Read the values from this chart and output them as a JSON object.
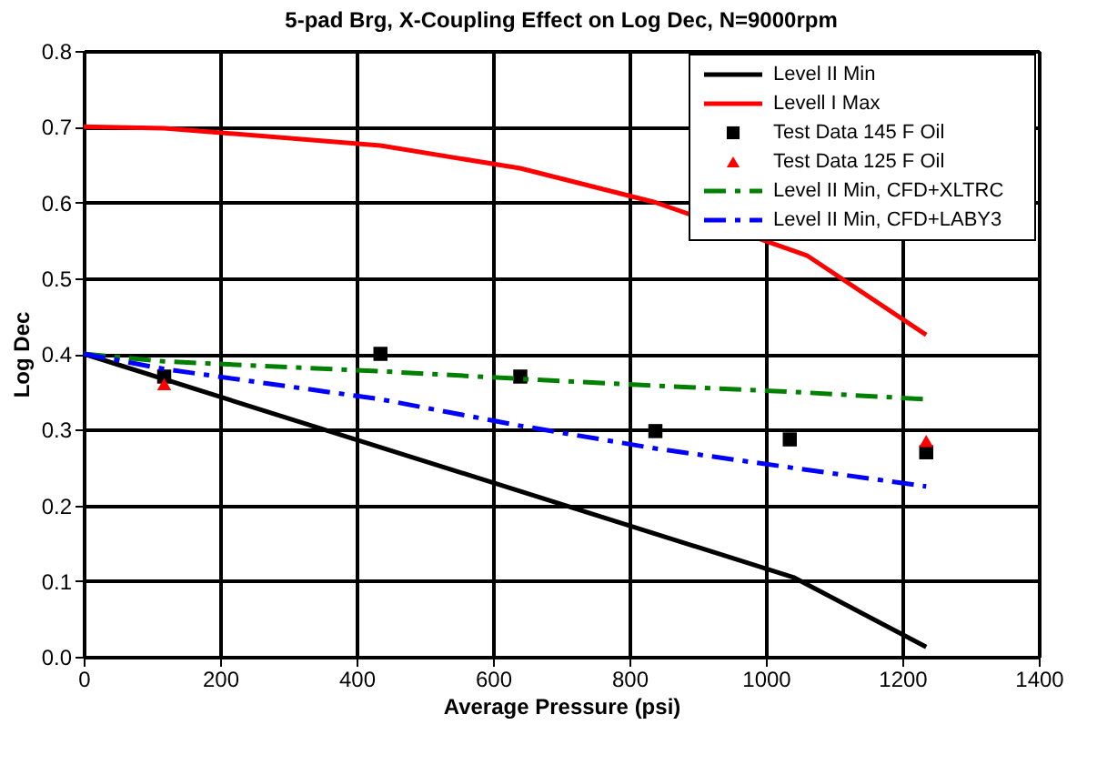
{
  "chart_data": {
    "type": "line",
    "title": "5-pad Brg, X-Coupling Effect on Log Dec, N=9000rpm",
    "xlabel": "Average Pressure (psi)",
    "ylabel": "Log Dec",
    "xlim": [
      0,
      1400
    ],
    "xticks": [
      0,
      200,
      400,
      600,
      800,
      1000,
      1200,
      1400
    ],
    "ylim": [
      0,
      0.8
    ],
    "yticks": [
      {
        "value": 0,
        "label": "0.0"
      },
      0.1,
      0.2,
      0.3,
      0.4,
      0.5,
      0.6,
      0.7,
      0.8
    ],
    "grid": true,
    "legend": "top right",
    "series": [
      {
        "name": "Level II Min",
        "color": "#000000",
        "marker": "none",
        "line_style": "solid",
        "x": [
          0,
          1040,
          1235
        ],
        "values": [
          0.4,
          0.105,
          0.013
        ]
      },
      {
        "name": "Levell I Max",
        "color": "#ff0000",
        "marker": "none",
        "line_style": "solid",
        "x": [
          0,
          118,
          435,
          640,
          838,
          1060,
          1235
        ],
        "values": [
          0.7,
          0.698,
          0.675,
          0.645,
          0.6,
          0.53,
          0.425
        ]
      },
      {
        "name": "Test Data 145 F Oil",
        "type": "scatter",
        "color": "#000000",
        "marker": "square",
        "x": [
          118,
          435,
          640,
          838,
          1035,
          1235
        ],
        "values": [
          0.37,
          0.4,
          0.37,
          0.298,
          0.287,
          0.27
        ]
      },
      {
        "name": "Test Data 125 F Oil",
        "type": "scatter",
        "color": "#ff0000",
        "marker": "triangle",
        "x": [
          118,
          1235
        ],
        "values": [
          0.36,
          0.285
        ]
      },
      {
        "name": "Level II Min, CFD+XLTRC",
        "color": "#008000",
        "marker": "none",
        "line_style": "dashed",
        "x": [
          0,
          118,
          435,
          640,
          838,
          1035,
          1235
        ],
        "values": [
          0.4,
          0.39,
          0.377,
          0.367,
          0.358,
          0.35,
          0.34
        ]
      },
      {
        "name": "Level II Min, CFD+LABY3",
        "color": "#0000ff",
        "marker": "none",
        "line_style": "dashed",
        "x": [
          0,
          118,
          435,
          640,
          838,
          1035,
          1235
        ],
        "values": [
          0.4,
          0.38,
          0.34,
          0.305,
          0.275,
          0.25,
          0.225
        ]
      }
    ]
  }
}
